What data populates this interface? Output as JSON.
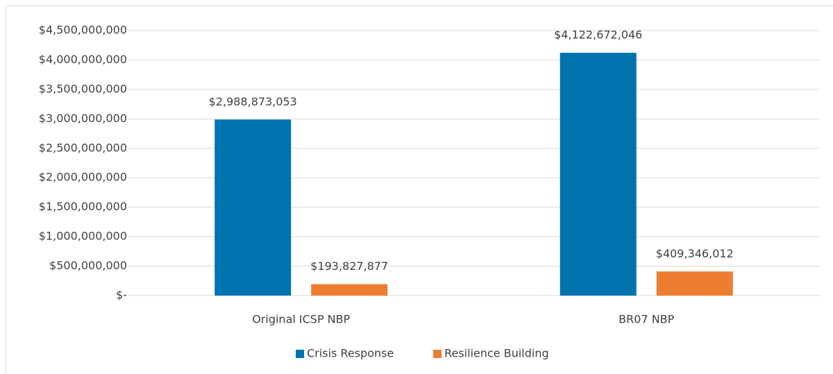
{
  "chart_data": {
    "type": "bar",
    "categories": [
      "Original ICSP NBP",
      "BR07 NBP"
    ],
    "series": [
      {
        "name": "Crisis Response",
        "color": "#0072ad",
        "values": [
          2988873053,
          4122672046
        ],
        "value_labels": [
          "$2,988,873,053",
          "$4,122,672,046"
        ]
      },
      {
        "name": "Resilience Building",
        "color": "#ed7d31",
        "values": [
          193827877,
          409346012
        ],
        "value_labels": [
          "$193,827,877",
          "$409,346,012"
        ]
      }
    ],
    "ylim": [
      0,
      4500000000
    ],
    "yticks": [
      {
        "value": 0,
        "label": "$-"
      },
      {
        "value": 500000000,
        "label": "$500,000,000"
      },
      {
        "value": 1000000000,
        "label": "$1,000,000,000"
      },
      {
        "value": 1500000000,
        "label": "$1,500,000,000"
      },
      {
        "value": 2000000000,
        "label": "$2,000,000,000"
      },
      {
        "value": 2500000000,
        "label": "$2,500,000,000"
      },
      {
        "value": 3000000000,
        "label": "$3,000,000,000"
      },
      {
        "value": 3500000000,
        "label": "$3,500,000,000"
      },
      {
        "value": 4000000000,
        "label": "$4,000,000,000"
      },
      {
        "value": 4500000000,
        "label": "$4,500,000,000"
      }
    ],
    "grid": true,
    "legend": "bottom"
  }
}
